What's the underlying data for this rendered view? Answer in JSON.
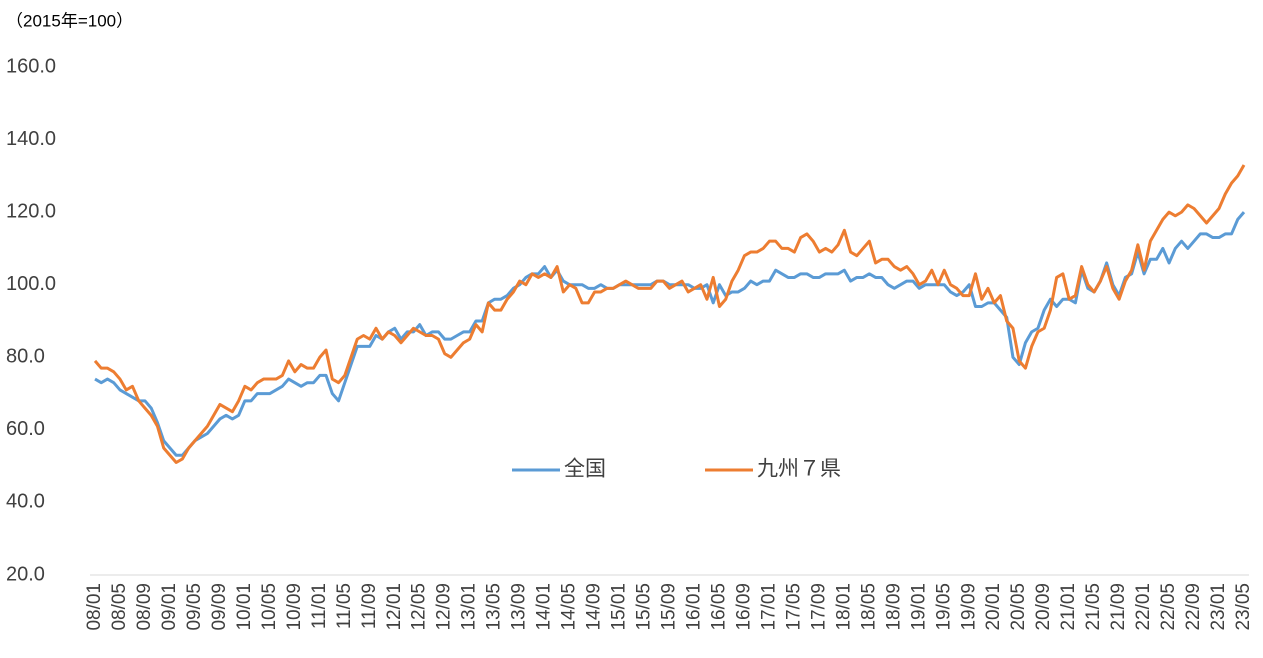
{
  "chart_data": {
    "type": "line",
    "y_label": "（2015年=100）",
    "categories": [
      "08/01",
      null,
      null,
      null,
      "08/05",
      null,
      null,
      null,
      "08/09",
      null,
      null,
      null,
      "09/01",
      null,
      null,
      null,
      "09/05",
      null,
      null,
      null,
      "09/09",
      null,
      null,
      null,
      "10/01",
      null,
      null,
      null,
      "10/05",
      null,
      null,
      null,
      "10/09",
      null,
      null,
      null,
      "11/01",
      null,
      null,
      null,
      "11/05",
      null,
      null,
      null,
      "11/09",
      null,
      null,
      null,
      "12/01",
      null,
      null,
      null,
      "12/05",
      null,
      null,
      null,
      "12/09",
      null,
      null,
      null,
      "13/01",
      null,
      null,
      null,
      "13/05",
      null,
      null,
      null,
      "13/09",
      null,
      null,
      null,
      "14/01",
      null,
      null,
      null,
      "14/05",
      null,
      null,
      null,
      "14/09",
      null,
      null,
      null,
      "15/01",
      null,
      null,
      null,
      "15/05",
      null,
      null,
      null,
      "15/09",
      null,
      null,
      null,
      "16/01",
      null,
      null,
      null,
      "16/05",
      null,
      null,
      null,
      "16/09",
      null,
      null,
      null,
      "17/01",
      null,
      null,
      null,
      "17/05",
      null,
      null,
      null,
      "17/09",
      null,
      null,
      null,
      "18/01",
      null,
      null,
      null,
      "18/05",
      null,
      null,
      null,
      "18/09",
      null,
      null,
      null,
      "19/01",
      null,
      null,
      null,
      "19/05",
      null,
      null,
      null,
      "19/09",
      null,
      null,
      null,
      "20/01",
      null,
      null,
      null,
      "20/05",
      null,
      null,
      null,
      "20/09",
      null,
      null,
      null,
      "21/01",
      null,
      null,
      null,
      "21/05",
      null,
      null,
      null,
      "21/09",
      null,
      null,
      null,
      "22/01",
      null,
      null,
      null,
      "22/05",
      null,
      null,
      null,
      "22/09",
      null,
      null,
      null,
      "23/01",
      null,
      null,
      null,
      "23/05"
    ],
    "series": [
      {
        "name": "全国",
        "color": "#5b9bd5",
        "values": [
          74,
          73,
          74,
          73,
          71,
          70,
          69,
          68,
          68,
          66,
          62,
          57,
          55,
          53,
          53,
          55,
          57,
          58,
          59,
          61,
          63,
          64,
          63,
          64,
          68,
          68,
          70,
          70,
          70,
          71,
          72,
          74,
          73,
          72,
          73,
          73,
          75,
          75,
          70,
          68,
          73,
          78,
          83,
          83,
          83,
          86,
          85,
          87,
          88,
          85,
          87,
          87,
          89,
          86,
          87,
          87,
          85,
          85,
          86,
          87,
          87,
          90,
          90,
          95,
          96,
          96,
          97,
          99,
          100,
          102,
          103,
          103,
          105,
          102,
          104,
          101,
          100,
          100,
          100,
          99,
          99,
          100,
          99,
          99,
          100,
          100,
          100,
          100,
          100,
          100,
          101,
          101,
          100,
          100,
          100,
          100,
          99,
          99,
          100,
          95,
          100,
          97,
          98,
          98,
          99,
          101,
          100,
          101,
          101,
          104,
          103,
          102,
          102,
          103,
          103,
          102,
          102,
          103,
          103,
          103,
          104,
          101,
          102,
          102,
          103,
          102,
          102,
          100,
          99,
          100,
          101,
          101,
          99,
          100,
          100,
          100,
          100,
          98,
          97,
          98,
          100,
          94,
          94,
          95,
          95,
          93,
          91,
          80,
          78,
          84,
          87,
          88,
          93,
          96,
          94,
          96,
          96,
          95,
          104,
          99,
          98,
          101,
          106,
          100,
          97,
          102,
          103,
          109,
          103,
          107,
          107,
          110,
          106,
          110,
          112,
          110,
          112,
          114,
          114,
          113,
          113,
          114,
          114,
          118,
          120
        ]
      },
      {
        "name": "九州７県",
        "color": "#ed7d31",
        "values": [
          79,
          77,
          77,
          76,
          74,
          71,
          72,
          68,
          66,
          64,
          61,
          55,
          53,
          51,
          52,
          55,
          57,
          59,
          61,
          64,
          67,
          66,
          65,
          68,
          72,
          71,
          73,
          74,
          74,
          74,
          75,
          79,
          76,
          78,
          77,
          77,
          80,
          82,
          74,
          73,
          75,
          80,
          85,
          86,
          85,
          88,
          85,
          87,
          86,
          84,
          86,
          88,
          87,
          86,
          86,
          85,
          81,
          80,
          82,
          84,
          85,
          89,
          87,
          95,
          93,
          93,
          96,
          98,
          101,
          100,
          103,
          102,
          103,
          102,
          105,
          98,
          100,
          99,
          95,
          95,
          98,
          98,
          99,
          99,
          100,
          101,
          100,
          99,
          99,
          99,
          101,
          101,
          99,
          100,
          101,
          98,
          99,
          100,
          96,
          102,
          94,
          96,
          101,
          104,
          108,
          109,
          109,
          110,
          112,
          112,
          110,
          110,
          109,
          113,
          114,
          112,
          109,
          110,
          109,
          111,
          115,
          109,
          108,
          110,
          112,
          106,
          107,
          107,
          105,
          104,
          105,
          103,
          100,
          101,
          104,
          100,
          104,
          100,
          99,
          97,
          97,
          103,
          96,
          99,
          95,
          97,
          90,
          88,
          79,
          77,
          83,
          87,
          88,
          93,
          102,
          103,
          96,
          97,
          105,
          100,
          98,
          101,
          105,
          99,
          96,
          101,
          104,
          111,
          104,
          112,
          115,
          118,
          120,
          119,
          120,
          122,
          121,
          119,
          117,
          119,
          121,
          125,
          128,
          130,
          133
        ]
      }
    ],
    "ylim": [
      20,
      160
    ],
    "yticks": [
      {
        "value": 20,
        "label": "20.0"
      },
      {
        "value": 40,
        "label": "40.0"
      },
      {
        "value": 60,
        "label": "60.0"
      },
      {
        "value": 80,
        "label": "80.0"
      },
      {
        "value": 100,
        "label": "100.0"
      },
      {
        "value": 120,
        "label": "120.0"
      },
      {
        "value": 140,
        "label": "140.0"
      },
      {
        "value": 160,
        "label": "160.0"
      }
    ],
    "grid": false,
    "legend": "center"
  }
}
